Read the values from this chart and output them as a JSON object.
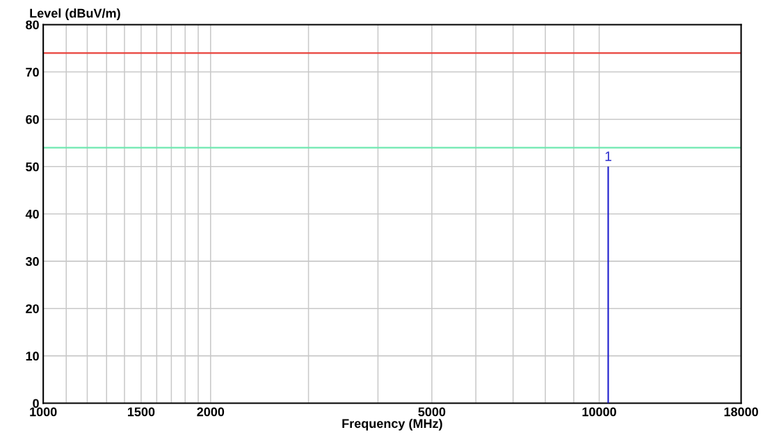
{
  "chart_data": {
    "type": "bar",
    "ylabel": "Level (dBuV/m)",
    "xlabel": "Frequency (MHz)",
    "log": "x",
    "grid": true,
    "xlim": [
      1000,
      18000
    ],
    "ylim": [
      0,
      80
    ],
    "xticks": [
      1000,
      {
        "value": 1100,
        "label": null
      },
      {
        "value": 1200,
        "label": null
      },
      {
        "value": 1300,
        "label": null
      },
      {
        "value": 1400,
        "label": null
      },
      1500,
      {
        "value": 1600,
        "label": null
      },
      {
        "value": 1700,
        "label": null
      },
      {
        "value": 1800,
        "label": null
      },
      {
        "value": 1900,
        "label": null
      },
      2000,
      {
        "value": 3000,
        "label": null
      },
      {
        "value": 4000,
        "label": null
      },
      5000,
      {
        "value": 6000,
        "label": null
      },
      {
        "value": 7000,
        "label": null
      },
      {
        "value": 8000,
        "label": null
      },
      {
        "value": 9000,
        "label": null
      },
      10000,
      18000
    ],
    "yticks": [
      0,
      10,
      20,
      30,
      40,
      50,
      60,
      70,
      80
    ],
    "series": [
      {
        "color": "#1a1acc",
        "x": [
          10380
        ],
        "values": [
          50
        ]
      }
    ],
    "annotations": [
      "1"
    ],
    "ref_lines": [
      {
        "axis": "y",
        "value": 74,
        "label": null,
        "color": "#e8403a"
      },
      {
        "axis": "y",
        "value": 54,
        "label": null,
        "color": "#6ee8b0"
      }
    ]
  }
}
